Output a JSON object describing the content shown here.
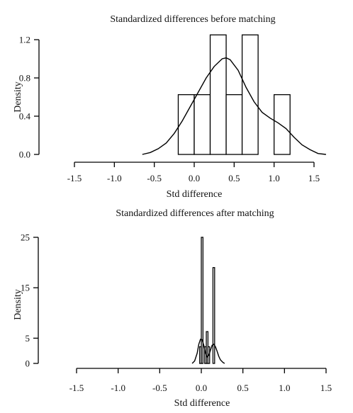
{
  "chart_data": [
    {
      "type": "histogram",
      "title": "Standardized differences before matching",
      "xlabel": "Std difference",
      "ylabel": "Density",
      "xlim": [
        -1.5,
        1.5
      ],
      "ylim": [
        0,
        1.2
      ],
      "x_ticks": [
        -1.5,
        -1.0,
        -0.5,
        0.0,
        0.5,
        1.0,
        1.5
      ],
      "x_tick_labels": [
        "-1.5",
        "-1.0",
        "-0.5",
        "0.0",
        "0.5",
        "1.0",
        "1.5"
      ],
      "y_ticks": [
        0.0,
        0.4,
        0.8,
        1.2
      ],
      "y_tick_labels": [
        "0.0",
        "0.4",
        "0.8",
        "1.2"
      ],
      "bins": [
        {
          "x0": -0.2,
          "x1": 0.0,
          "density": 0.625
        },
        {
          "x0": 0.0,
          "x1": 0.2,
          "density": 0.625
        },
        {
          "x0": 0.2,
          "x1": 0.4,
          "density": 1.25
        },
        {
          "x0": 0.4,
          "x1": 0.6,
          "density": 0.625
        },
        {
          "x0": 0.6,
          "x1": 0.8,
          "density": 1.25
        },
        {
          "x0": 0.8,
          "x1": 1.0,
          "density": 0.0
        },
        {
          "x0": 1.0,
          "x1": 1.2,
          "density": 0.625
        }
      ],
      "density_curve": {
        "x": [
          -0.65,
          -0.55,
          -0.45,
          -0.35,
          -0.25,
          -0.15,
          -0.05,
          0.05,
          0.15,
          0.25,
          0.35,
          0.4,
          0.45,
          0.55,
          0.65,
          0.75,
          0.85,
          0.95,
          1.05,
          1.15,
          1.25,
          1.35,
          1.45,
          1.55,
          1.65
        ],
        "y": [
          0.0,
          0.02,
          0.06,
          0.12,
          0.22,
          0.35,
          0.5,
          0.65,
          0.8,
          0.92,
          1.0,
          1.01,
          0.99,
          0.88,
          0.7,
          0.55,
          0.44,
          0.38,
          0.33,
          0.27,
          0.18,
          0.1,
          0.05,
          0.01,
          0.0
        ]
      }
    },
    {
      "type": "histogram",
      "title": "Standardized differences after matching",
      "xlabel": "Std difference",
      "ylabel": "Density",
      "xlim": [
        -1.5,
        1.5
      ],
      "ylim": [
        0,
        25
      ],
      "x_ticks": [
        -1.5,
        -1.0,
        -0.5,
        0.0,
        0.5,
        1.0,
        1.5
      ],
      "x_tick_labels": [
        "-1.5",
        "-1.0",
        "-0.5",
        "0.0",
        "0.5",
        "1.0",
        "1.5"
      ],
      "y_ticks": [
        0,
        5,
        15,
        25
      ],
      "y_tick_labels": [
        "0",
        "5",
        "15",
        "25"
      ],
      "bins": [
        {
          "x0": -0.02,
          "x1": 0.0,
          "density": 3.3
        },
        {
          "x0": 0.0,
          "x1": 0.02,
          "density": 25.0
        },
        {
          "x0": 0.02,
          "x1": 0.04,
          "density": 0.0
        },
        {
          "x0": 0.04,
          "x1": 0.06,
          "density": 3.3
        },
        {
          "x0": 0.06,
          "x1": 0.08,
          "density": 6.3
        },
        {
          "x0": 0.08,
          "x1": 0.1,
          "density": 3.3
        },
        {
          "x0": 0.1,
          "x1": 0.12,
          "density": 0.0
        },
        {
          "x0": 0.12,
          "x1": 0.14,
          "density": 0.0
        },
        {
          "x0": 0.14,
          "x1": 0.16,
          "density": 19.0
        }
      ],
      "density_curve": {
        "x": [
          -0.11,
          -0.08,
          -0.05,
          -0.03,
          -0.01,
          0.01,
          0.03,
          0.05,
          0.07,
          0.09,
          0.11,
          0.13,
          0.15,
          0.17,
          0.19,
          0.21,
          0.23,
          0.26,
          0.28
        ],
        "y": [
          0.0,
          0.5,
          2.0,
          3.8,
          4.8,
          4.7,
          3.6,
          2.1,
          1.3,
          1.6,
          2.6,
          3.6,
          3.8,
          3.3,
          2.4,
          1.4,
          0.7,
          0.2,
          0.0
        ]
      }
    }
  ]
}
